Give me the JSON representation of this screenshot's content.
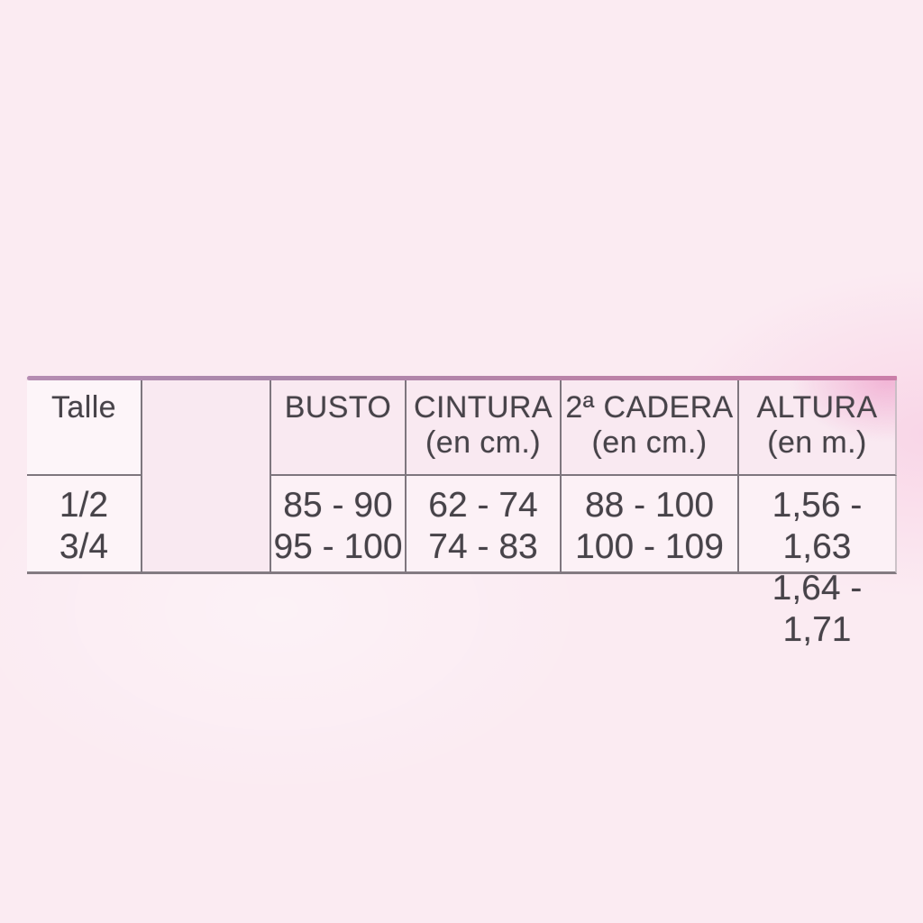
{
  "page": {
    "background_color": "#fbebf2"
  },
  "table_style": {
    "top_border_gradient_left": "#b58cb2",
    "top_border_gradient_right": "#cb7ea9",
    "grid_line_color": "#7e767e",
    "header_bg": "#f9e9f1",
    "body_bg": "#fcf1f6",
    "talle_column_bg": "#fdf5f9",
    "altura_corner_glow": "#f2b5d6",
    "text_color": "#474349"
  },
  "size_chart": {
    "columns": [
      {
        "header": "Talle",
        "sub": ""
      },
      {
        "header": "",
        "sub": ""
      },
      {
        "header": "BUSTO",
        "sub": ""
      },
      {
        "header": "CINTURA",
        "sub": "(en cm.)"
      },
      {
        "header": "2ª CADERA",
        "sub": "(en cm.)"
      },
      {
        "header": "ALTURA",
        "sub": "(en m.)"
      }
    ],
    "rows": [
      {
        "talle": "1/2",
        "busto": "85 - 90",
        "cintura": "62 - 74",
        "cadera": "88 - 100",
        "altura": "1,56 - 1,63"
      },
      {
        "talle": "3/4",
        "busto": "95 - 100",
        "cintura": "74 - 83",
        "cadera": "100 - 109",
        "altura": "1,64 - 1,71"
      }
    ]
  },
  "chart_data": {
    "type": "table",
    "title": "",
    "columns": [
      "Talle",
      "BUSTO",
      "CINTURA (en cm.)",
      "2ª CADERA (en cm.)",
      "ALTURA (en m.)"
    ],
    "rows": [
      [
        "1/2",
        "85-90",
        "62-74",
        "88-100",
        "1,56-1,63"
      ],
      [
        "3/4",
        "95-100",
        "74-83",
        "100-109",
        "1,64-1,71"
      ]
    ]
  }
}
